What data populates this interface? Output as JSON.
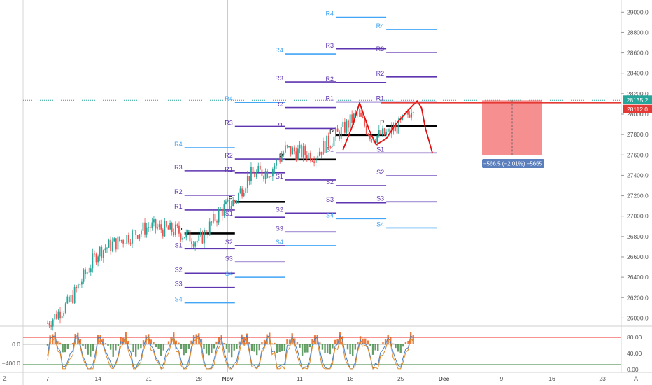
{
  "chart_data": {
    "type": "candlestick",
    "price_axis": {
      "ticks": [
        "29000.0",
        "28800.0",
        "28600.0",
        "28400.0",
        "28200.0",
        "28000.0",
        "27800.0",
        "27600.0",
        "27400.0",
        "27200.0",
        "27000.0",
        "26800.0",
        "26600.0",
        "26400.0",
        "26200.0",
        "26000.0"
      ]
    },
    "time_axis": {
      "ticks": [
        "7",
        "14",
        "21",
        "28",
        "Nov",
        "11",
        "18",
        "25",
        "Dec",
        "9",
        "16",
        "23"
      ]
    },
    "current_price": "28135.2",
    "stop_price": "28112.0",
    "position_label": "−566.5 (−2.01%) −5665",
    "pivot_groups": [
      {
        "name": "week-oct26",
        "levels": [
          {
            "label": "R4",
            "value": 27670
          },
          {
            "label": "R3",
            "value": 27445
          },
          {
            "label": "R2",
            "value": 27205
          },
          {
            "label": "R1",
            "value": 27060
          },
          {
            "label": "P",
            "value": 26830
          },
          {
            "label": "S1",
            "value": 26680
          },
          {
            "label": "S2",
            "value": 26440
          },
          {
            "label": "S3",
            "value": 26300
          },
          {
            "label": "S4",
            "value": 26150
          }
        ]
      },
      {
        "name": "week-nov2",
        "levels": [
          {
            "label": "R4",
            "value": 28115
          },
          {
            "label": "R3",
            "value": 27880
          },
          {
            "label": "R2",
            "value": 27560
          },
          {
            "label": "R1",
            "value": 27425
          },
          {
            "label": "P",
            "value": 27140
          },
          {
            "label": "S1",
            "value": 26990
          },
          {
            "label": "S2",
            "value": 26710
          },
          {
            "label": "S3",
            "value": 26550
          },
          {
            "label": "S4",
            "value": 26400
          }
        ]
      },
      {
        "name": "week-nov9",
        "levels": [
          {
            "label": "R4",
            "value": 28590
          },
          {
            "label": "R3",
            "value": 28315
          },
          {
            "label": "R2",
            "value": 28065
          },
          {
            "label": "R1",
            "value": 27860
          },
          {
            "label": "P",
            "value": 27555
          },
          {
            "label": "S1",
            "value": 27355
          },
          {
            "label": "S2",
            "value": 27030
          },
          {
            "label": "S3",
            "value": 26845
          },
          {
            "label": "S4",
            "value": 26710
          }
        ]
      },
      {
        "name": "week-nov16",
        "levels": [
          {
            "label": "R4",
            "value": 28950
          },
          {
            "label": "R3",
            "value": 28640
          },
          {
            "label": "R2",
            "value": 28310
          },
          {
            "label": "R1",
            "value": 28120
          },
          {
            "label": "P",
            "value": 27795
          },
          {
            "label": "S1",
            "value": 27620
          },
          {
            "label": "S2",
            "value": 27300
          },
          {
            "label": "S3",
            "value": 27130
          },
          {
            "label": "S4",
            "value": 26975
          }
        ]
      },
      {
        "name": "week-nov23",
        "levels": [
          {
            "label": "R4",
            "value": 28830
          },
          {
            "label": "R3",
            "value": 28605
          },
          {
            "label": "R2",
            "value": 28365
          },
          {
            "label": "R1",
            "value": 28120
          },
          {
            "label": "P",
            "value": 27885
          },
          {
            "label": "S1",
            "value": 27620
          },
          {
            "label": "S2",
            "value": 27395
          },
          {
            "label": "S3",
            "value": 27140
          },
          {
            "label": "S4",
            "value": 26885
          }
        ]
      }
    ],
    "oscillator": {
      "left_ticks": [
        "0.0",
        "−400.0"
      ],
      "right_ticks": [
        "80.00",
        "40.00",
        "0.00"
      ]
    }
  },
  "corner_labels": {
    "left": "Z",
    "right": "A"
  },
  "colors": {
    "r4s4": "#42a5f5",
    "r_other": "#5e35b1",
    "pivot": "#000000",
    "drawing": "#e01010",
    "price_tag": "#26a69a",
    "stop_tag": "#e53935",
    "up": "#26a69a",
    "down": "#ef5350",
    "zone": "#f47b7b"
  }
}
